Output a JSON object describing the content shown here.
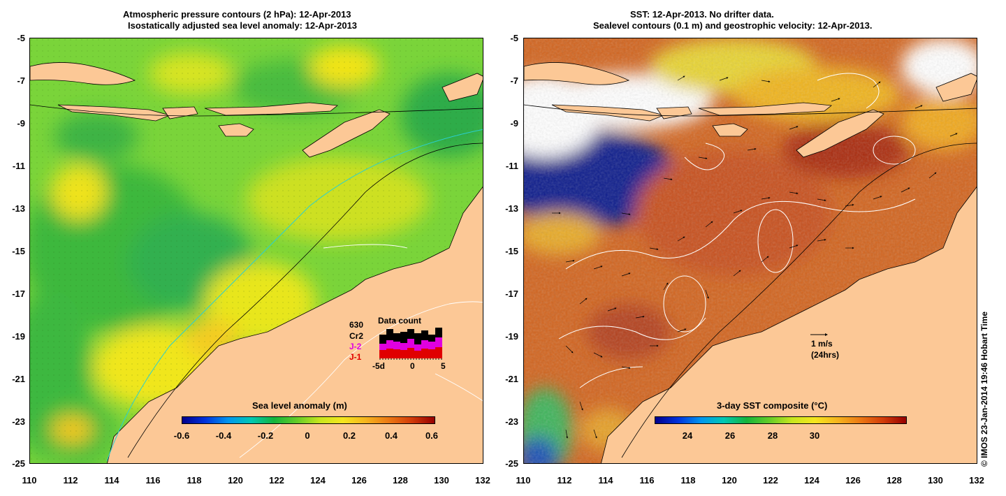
{
  "left_panel": {
    "title_line1": "Atmospheric pressure contours (2 hPa): 12-Apr-2013",
    "title_line2": "Isostatically adjusted sea level anomaly: 12-Apr-2013",
    "colorbar": {
      "title": "Sea level anomaly (m)",
      "tick_labels": [
        "-0.6",
        "-0.4",
        "-0.2",
        "0",
        "0.2",
        "0.4",
        "0.6"
      ]
    },
    "data_count": {
      "title": "Data count",
      "labels": [
        "630",
        "Cr2",
        "J-2",
        "J-1"
      ],
      "label_colors": [
        "#000000",
        "#000000",
        "#e000e0",
        "#e00000"
      ],
      "axis_labels": [
        "-5d",
        "0",
        "5"
      ]
    }
  },
  "right_panel": {
    "title_line1": "SST: 12-Apr-2013. No drifter data.",
    "title_line2": "Sealevel contours (0.1 m) and geostrophic velocity: 12-Apr-2013.",
    "colorbar": {
      "title": "3-day SST composite (°C)",
      "tick_labels": [
        "24",
        "26",
        "28",
        "30"
      ]
    },
    "velocity_scale": {
      "label": "1 m/s",
      "sublabel": "(24hrs)"
    }
  },
  "axes": {
    "y_labels": [
      "-5",
      "-7",
      "-9",
      "-11",
      "-13",
      "-15",
      "-17",
      "-19",
      "-21",
      "-23",
      "-25"
    ],
    "x_labels": [
      "110",
      "112",
      "114",
      "116",
      "118",
      "120",
      "122",
      "124",
      "126",
      "128",
      "130",
      "132"
    ]
  },
  "credit": "© IMOS 23-Jan-2014 19:46 Hobart Time",
  "colors": {
    "land": "#fcc896",
    "sea_green": "#4cc43c",
    "sst_warm": "#d2641e",
    "cold_blue": "#0a1a8c"
  }
}
